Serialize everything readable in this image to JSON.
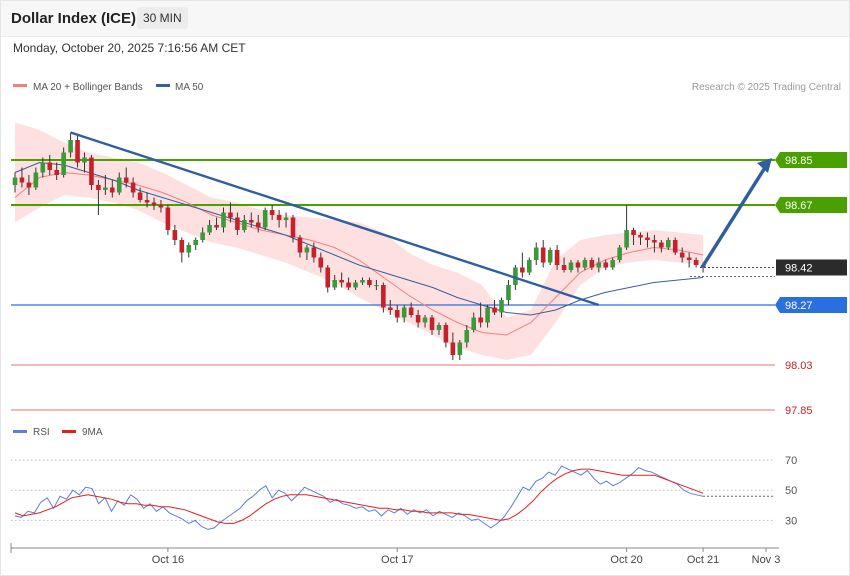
{
  "header": {
    "title": "Dollar Index (ICE)",
    "timeframe": "30 MIN"
  },
  "datetime": "Monday, October 20, 2025 7:16:56 AM CET",
  "credit": "Research © 2025 Trading Central",
  "colors": {
    "bull": "#3a9a3a",
    "bear": "#c8202a",
    "ma20": "#f08080",
    "ma50": "#35609a",
    "band_fill": "#ffd6d6",
    "resistance": "#4aa000",
    "support_blue": "#2a6fe0",
    "support_red": "#e05050",
    "trend": "#2f5f9e",
    "rsi": "#5b7fd6",
    "rsi_ma": "#e02020"
  },
  "legend": [
    {
      "label": "MA 20 + Bollinger Bands",
      "color": "#f08080"
    },
    {
      "label": "MA 50",
      "color": "#35609a"
    }
  ],
  "rsi_legend": [
    {
      "label": "RSI",
      "color": "#5b7fd6"
    },
    {
      "label": "9MA",
      "color": "#e02020"
    }
  ],
  "chart_data": [
    {
      "type": "candlestick",
      "x_ticks": [
        "Oct 16",
        "Oct 17",
        "Oct 20",
        "Oct 21",
        "Nov 3"
      ],
      "ylim": [
        97.83,
        99.09
      ],
      "last_price": "98.42",
      "levels": [
        {
          "value": 98.85,
          "label": "98.85",
          "kind": "resistance"
        },
        {
          "value": 98.67,
          "label": "98.67",
          "kind": "resistance"
        },
        {
          "value": 98.42,
          "label": "98.42",
          "kind": "last"
        },
        {
          "value": 98.27,
          "label": "98.27",
          "kind": "pivot"
        },
        {
          "value": 98.03,
          "label": "98.03",
          "kind": "support"
        },
        {
          "value": 97.85,
          "label": "97.85",
          "kind": "support"
        }
      ],
      "candles": [
        [
          98.75,
          98.8,
          98.72,
          98.78
        ],
        [
          98.78,
          98.82,
          98.74,
          98.76
        ],
        [
          98.76,
          98.79,
          98.71,
          98.74
        ],
        [
          98.74,
          98.82,
          98.73,
          98.8
        ],
        [
          98.8,
          98.86,
          98.78,
          98.84
        ],
        [
          98.84,
          98.87,
          98.79,
          98.81
        ],
        [
          98.81,
          98.84,
          98.77,
          98.79
        ],
        [
          98.79,
          98.9,
          98.78,
          98.88
        ],
        [
          98.88,
          98.96,
          98.86,
          98.93
        ],
        [
          98.93,
          98.95,
          98.82,
          98.84
        ],
        [
          98.84,
          98.88,
          98.8,
          98.86
        ],
        [
          98.86,
          98.87,
          98.73,
          98.75
        ],
        [
          98.75,
          98.77,
          98.63,
          98.73
        ],
        [
          98.73,
          98.79,
          98.71,
          98.74
        ],
        [
          98.74,
          98.77,
          98.7,
          98.72
        ],
        [
          98.72,
          98.8,
          98.71,
          98.78
        ],
        [
          98.78,
          98.82,
          98.74,
          98.76
        ],
        [
          98.76,
          98.78,
          98.7,
          98.72
        ],
        [
          98.72,
          98.74,
          98.68,
          98.69
        ],
        [
          98.69,
          98.72,
          98.66,
          98.68
        ],
        [
          98.68,
          98.7,
          98.65,
          98.67
        ],
        [
          98.67,
          98.69,
          98.64,
          98.66
        ],
        [
          98.66,
          98.67,
          98.55,
          98.57
        ],
        [
          98.57,
          98.59,
          98.51,
          98.53
        ],
        [
          98.53,
          98.54,
          98.44,
          98.48
        ],
        [
          98.48,
          98.52,
          98.46,
          98.51
        ],
        [
          98.51,
          98.54,
          98.49,
          98.53
        ],
        [
          98.53,
          98.58,
          98.52,
          98.56
        ],
        [
          98.56,
          98.61,
          98.55,
          98.59
        ],
        [
          98.59,
          98.62,
          98.57,
          98.58
        ],
        [
          98.58,
          98.66,
          98.56,
          98.64
        ],
        [
          98.64,
          98.68,
          98.6,
          98.62
        ],
        [
          98.62,
          98.64,
          98.55,
          98.57
        ],
        [
          98.57,
          98.63,
          98.56,
          98.61
        ],
        [
          98.61,
          98.64,
          98.58,
          98.6
        ],
        [
          98.6,
          98.63,
          98.56,
          98.58
        ],
        [
          98.58,
          98.66,
          98.57,
          98.65
        ],
        [
          98.65,
          98.67,
          98.61,
          98.63
        ],
        [
          98.63,
          98.65,
          98.58,
          98.61
        ],
        [
          98.61,
          98.64,
          98.58,
          98.62
        ],
        [
          98.62,
          98.63,
          98.52,
          98.54
        ],
        [
          98.54,
          98.55,
          98.46,
          98.48
        ],
        [
          98.48,
          98.51,
          98.45,
          98.5
        ],
        [
          98.5,
          98.52,
          98.44,
          98.46
        ],
        [
          98.46,
          98.48,
          98.4,
          98.42
        ],
        [
          98.42,
          98.43,
          98.32,
          98.34
        ],
        [
          98.34,
          98.39,
          98.33,
          98.37
        ],
        [
          98.37,
          98.4,
          98.34,
          98.36
        ],
        [
          98.36,
          98.38,
          98.33,
          98.34
        ],
        [
          98.34,
          98.37,
          98.33,
          98.36
        ],
        [
          98.36,
          98.38,
          98.35,
          98.37
        ],
        [
          98.37,
          98.38,
          98.34,
          98.35
        ],
        [
          98.35,
          98.37,
          98.33,
          98.35
        ],
        [
          98.35,
          98.36,
          98.24,
          98.26
        ],
        [
          98.26,
          98.29,
          98.23,
          98.25
        ],
        [
          98.25,
          98.27,
          98.2,
          98.22
        ],
        [
          98.22,
          98.27,
          98.2,
          98.26
        ],
        [
          98.26,
          98.28,
          98.22,
          98.23
        ],
        [
          98.23,
          98.25,
          98.18,
          98.2
        ],
        [
          98.2,
          98.23,
          98.18,
          98.22
        ],
        [
          98.22,
          98.23,
          98.15,
          98.17
        ],
        [
          98.17,
          98.2,
          98.15,
          98.19
        ],
        [
          98.19,
          98.2,
          98.1,
          98.12
        ],
        [
          98.12,
          98.16,
          98.05,
          98.07
        ],
        [
          98.07,
          98.13,
          98.05,
          98.12
        ],
        [
          98.12,
          98.19,
          98.1,
          98.17
        ],
        [
          98.17,
          98.24,
          98.16,
          98.22
        ],
        [
          98.22,
          98.28,
          98.18,
          98.2
        ],
        [
          98.2,
          98.27,
          98.18,
          98.26
        ],
        [
          98.26,
          98.29,
          98.23,
          98.24
        ],
        [
          98.24,
          98.3,
          98.22,
          98.29
        ],
        [
          98.29,
          98.37,
          98.27,
          98.35
        ],
        [
          98.35,
          98.43,
          98.33,
          98.42
        ],
        [
          98.42,
          98.48,
          98.38,
          98.4
        ],
        [
          98.4,
          98.46,
          98.39,
          98.45
        ],
        [
          98.45,
          98.52,
          98.43,
          98.5
        ],
        [
          98.5,
          98.53,
          98.42,
          98.44
        ],
        [
          98.44,
          98.5,
          98.43,
          98.49
        ],
        [
          98.49,
          98.51,
          98.41,
          98.43
        ],
        [
          98.43,
          98.46,
          98.4,
          98.41
        ],
        [
          98.41,
          98.45,
          98.4,
          98.44
        ],
        [
          98.44,
          98.45,
          98.4,
          98.42
        ],
        [
          98.42,
          98.46,
          98.41,
          98.45
        ],
        [
          98.45,
          98.46,
          98.41,
          98.42
        ],
        [
          98.42,
          98.46,
          98.4,
          98.44
        ],
        [
          98.44,
          98.45,
          98.41,
          98.42
        ],
        [
          98.42,
          98.46,
          98.41,
          98.45
        ],
        [
          98.45,
          98.51,
          98.44,
          98.5
        ],
        [
          98.5,
          98.67,
          98.49,
          98.57
        ],
        [
          98.57,
          98.58,
          98.51,
          98.55
        ],
        [
          98.55,
          98.56,
          98.51,
          98.54
        ],
        [
          98.54,
          98.56,
          98.5,
          98.53
        ],
        [
          98.53,
          98.55,
          98.48,
          98.52
        ],
        [
          98.52,
          98.53,
          98.48,
          98.5
        ],
        [
          98.5,
          98.54,
          98.49,
          98.53
        ],
        [
          98.53,
          98.54,
          98.47,
          98.48
        ],
        [
          98.48,
          98.5,
          98.44,
          98.46
        ],
        [
          98.46,
          98.48,
          98.42,
          98.45
        ],
        [
          98.45,
          98.46,
          98.42,
          98.43
        ],
        [
          98.43,
          98.44,
          98.4,
          98.42
        ]
      ],
      "ma20": [
        98.7,
        98.78,
        98.8,
        98.79,
        98.77,
        98.75,
        98.72,
        98.68,
        98.63,
        98.6,
        98.57,
        98.55,
        98.53,
        98.5,
        98.45,
        98.38,
        98.31,
        98.25,
        98.2,
        98.16,
        98.15,
        98.2,
        98.3,
        98.4,
        98.45,
        98.48,
        98.5,
        98.49,
        98.47
      ],
      "ma50": [
        98.8,
        98.84,
        98.83,
        98.8,
        98.77,
        98.73,
        98.7,
        98.67,
        98.64,
        98.61,
        98.58,
        98.55,
        98.51,
        98.47,
        98.43,
        98.4,
        98.37,
        98.34,
        98.3,
        98.27,
        98.24,
        98.23,
        98.25,
        98.29,
        98.32,
        98.34,
        98.36,
        98.37,
        98.38
      ],
      "bb_upper": [
        99.0,
        98.97,
        98.92,
        98.88,
        98.86,
        98.84,
        98.8,
        98.75,
        98.7,
        98.68,
        98.65,
        98.63,
        98.62,
        98.61,
        98.6,
        98.56,
        98.48,
        98.43,
        98.4,
        98.35,
        98.22,
        98.25,
        98.45,
        98.53,
        98.55,
        98.56,
        98.57,
        98.56,
        98.55
      ],
      "bb_lower": [
        98.6,
        98.66,
        98.71,
        98.7,
        98.68,
        98.65,
        98.6,
        98.56,
        98.52,
        98.5,
        98.47,
        98.44,
        98.4,
        98.36,
        98.3,
        98.25,
        98.2,
        98.15,
        98.1,
        98.07,
        98.05,
        98.07,
        98.2,
        98.35,
        98.42,
        98.44,
        98.45,
        98.44,
        98.43
      ]
    },
    {
      "type": "line",
      "title": "RSI",
      "yticks": [
        30,
        50,
        70
      ],
      "ylim": [
        17,
        80
      ],
      "series": [
        {
          "name": "RSI",
          "values": [
            33,
            32,
            36,
            35,
            42,
            45,
            38,
            46,
            44,
            50,
            47,
            52,
            51,
            41,
            45,
            36,
            43,
            40,
            47,
            44,
            38,
            41,
            36,
            39,
            35,
            33,
            31,
            28,
            30,
            26,
            24,
            25,
            29,
            32,
            35,
            38,
            43,
            46,
            50,
            53,
            45,
            50,
            48,
            43,
            47,
            52,
            50,
            48,
            46,
            42,
            44,
            41,
            40,
            38,
            39,
            36,
            37,
            33,
            37,
            35,
            38,
            34,
            37,
            35,
            37,
            33,
            36,
            34,
            32,
            35,
            33,
            30,
            31,
            28,
            25,
            28,
            32,
            38,
            45,
            52,
            50,
            56,
            58,
            62,
            60,
            66,
            64,
            62,
            60,
            63,
            58,
            54,
            56,
            53,
            55,
            58,
            61,
            65,
            63,
            62,
            60,
            58,
            56,
            54,
            50,
            48,
            47,
            46
          ]
        },
        {
          "name": "9MA",
          "values": [
            35,
            33,
            34,
            35,
            37,
            39,
            42,
            45,
            46,
            47,
            46,
            45,
            44,
            42,
            41,
            41,
            40,
            40,
            39,
            39,
            38,
            37,
            35,
            33,
            31,
            29,
            28,
            28,
            30,
            33,
            37,
            41,
            44,
            46,
            47,
            47,
            47,
            46,
            45,
            44,
            43,
            42,
            41,
            40,
            39,
            38,
            38,
            37,
            37,
            36,
            36,
            35,
            35,
            35,
            35,
            34,
            34,
            33,
            32,
            31,
            30,
            31,
            34,
            38,
            43,
            49,
            54,
            58,
            61,
            63,
            64,
            64,
            63,
            62,
            61,
            60,
            60,
            60,
            60,
            60,
            58,
            56,
            54,
            52,
            50,
            48
          ]
        }
      ]
    }
  ]
}
